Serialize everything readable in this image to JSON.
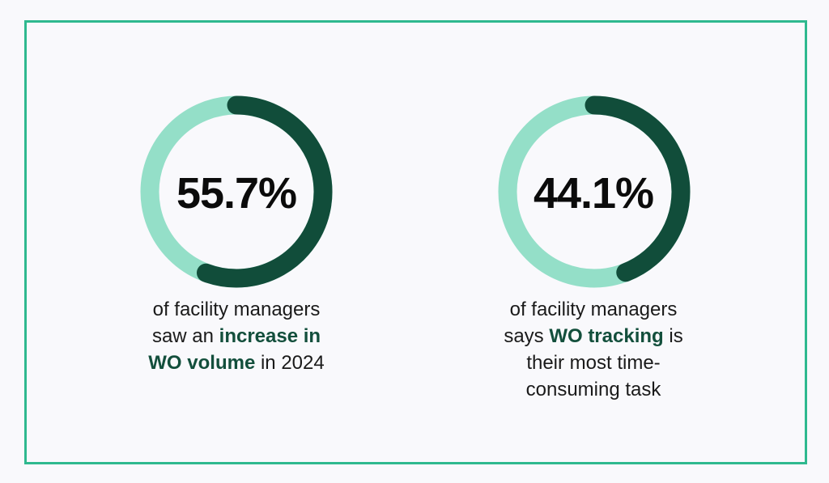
{
  "colors": {
    "border": "#2fb98f",
    "track": "#94dfc8",
    "fill": "#114d3a",
    "highlight": "#134f3c"
  },
  "chart_data": [
    {
      "type": "pie",
      "variant": "donut",
      "value": 55.7,
      "max": 100,
      "label": "55.7%",
      "caption": {
        "l1": "of facility managers",
        "l2a": "saw an ",
        "l2b": "increase in",
        "l3a": "WO volume",
        "l3b": " in 2024"
      }
    },
    {
      "type": "pie",
      "variant": "donut",
      "value": 44.1,
      "max": 100,
      "label": "44.1%",
      "caption": {
        "l1": "of facility managers",
        "l2a": "says ",
        "l2b": "WO tracking",
        "l2c": " is",
        "l3": "their most time-",
        "l4": "consuming task"
      }
    }
  ]
}
